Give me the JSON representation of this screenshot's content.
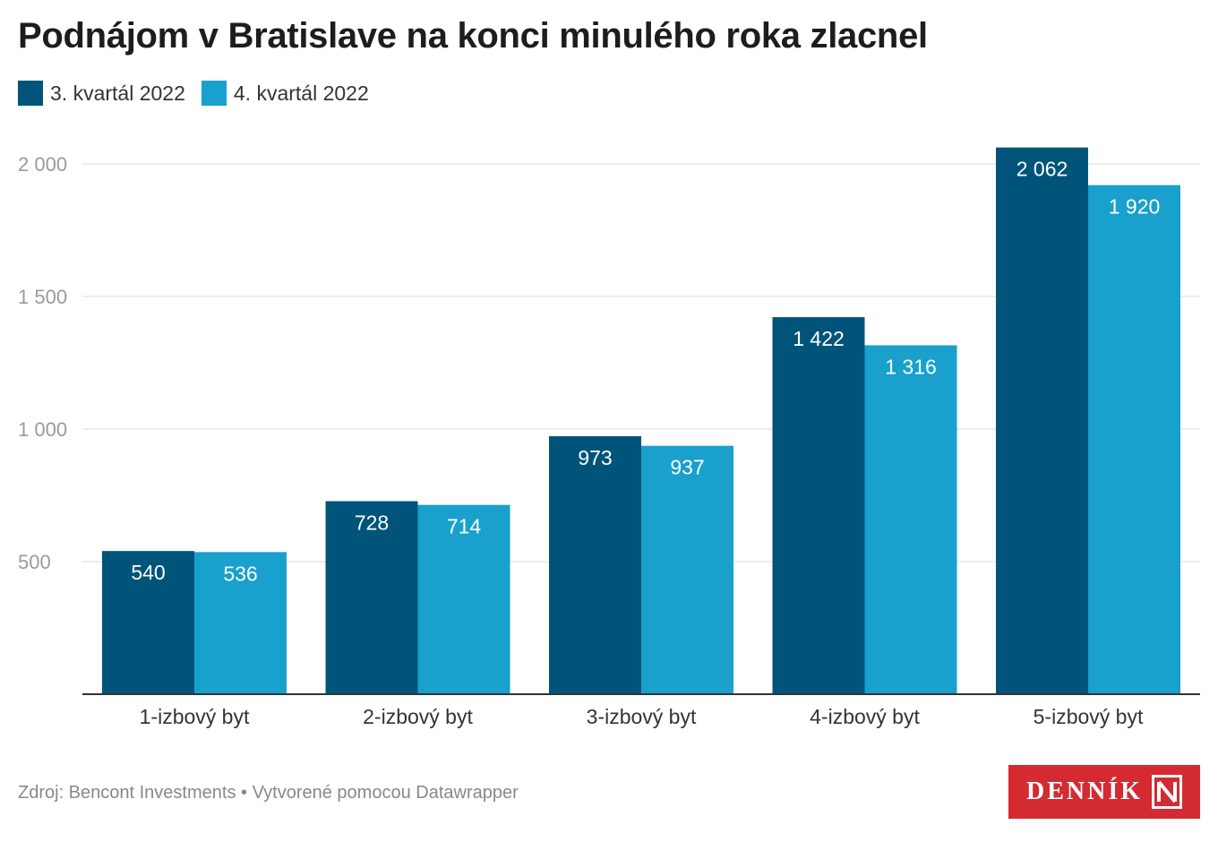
{
  "title": "Podnájom v Bratislave na konci minulého roka zlacnel",
  "legend": [
    {
      "label": "3. kvartál 2022",
      "color": "#00547a"
    },
    {
      "label": "4. kvartál 2022",
      "color": "#19a0cd"
    }
  ],
  "footer": "Zdroj: Bencont Investments • Vytvorené pomocou Datawrapper",
  "logo": {
    "text": "DENNÍK",
    "icon": "n-logo-icon",
    "color": "#d42a32"
  },
  "chart_data": {
    "type": "bar",
    "categories": [
      "1-izbový byt",
      "2-izbový byt",
      "3-izbový byt",
      "4-izbový byt",
      "5-izbový byt"
    ],
    "series": [
      {
        "name": "3. kvartál 2022",
        "values": [
          540,
          728,
          973,
          1422,
          2062
        ],
        "labels": [
          "540",
          "728",
          "973",
          "1 422",
          "2 062"
        ],
        "color": "#00547a"
      },
      {
        "name": "4. kvartál 2022",
        "values": [
          536,
          714,
          937,
          1316,
          1920
        ],
        "labels": [
          "536",
          "714",
          "937",
          "1 316",
          "1 920"
        ],
        "color": "#19a0cd"
      }
    ],
    "yticks": [
      500,
      1000,
      1500,
      2000
    ],
    "ytick_labels": [
      "500",
      "1 000",
      "1 500",
      "2 000"
    ],
    "ylim": [
      0,
      2062
    ],
    "grid": true,
    "legend_position": "top-left"
  }
}
